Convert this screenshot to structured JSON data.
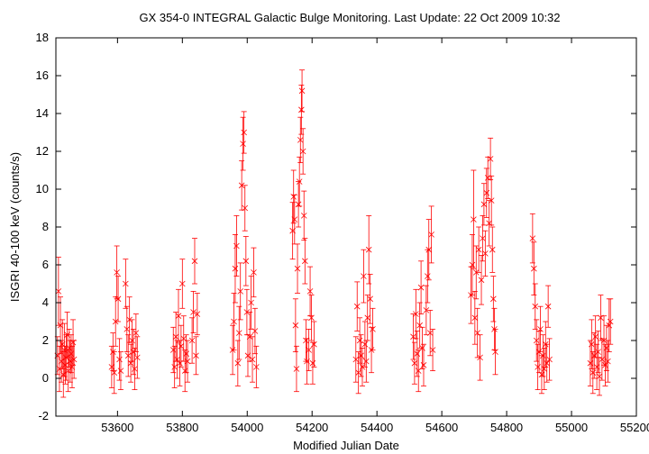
{
  "chart_data": {
    "type": "scatter",
    "title": "GX 354-0   INTEGRAL Galactic Bulge Monitoring.  Last Update: 22 Oct 2009 10:32",
    "xlabel": "Modified Julian Date",
    "ylabel": "ISGRI 40-100 keV (counts/s)",
    "xlim": [
      53410,
      55200
    ],
    "ylim": [
      -2,
      18
    ],
    "xticks": [
      53600,
      53800,
      54000,
      54200,
      54400,
      54600,
      54800,
      55000,
      55200
    ],
    "yticks": [
      -2,
      0,
      2,
      4,
      6,
      8,
      10,
      12,
      14,
      16,
      18
    ],
    "grid": false,
    "legend": "none",
    "marker": "x-with-errorbars",
    "color": "#ff0000",
    "series": [
      {
        "points": [
          {
            "x": 53415,
            "y": 1.2,
            "err": 1.0
          },
          {
            "x": 53418,
            "y": 4.6,
            "err": 1.8
          },
          {
            "x": 53421,
            "y": 0.5,
            "err": 1.2
          },
          {
            "x": 53424,
            "y": 2.8,
            "err": 1.5
          },
          {
            "x": 53427,
            "y": 0.9,
            "err": 1.1
          },
          {
            "x": 53430,
            "y": 1.8,
            "err": 1.3
          },
          {
            "x": 53433,
            "y": 0.2,
            "err": 1.2
          },
          {
            "x": 53436,
            "y": 1.5,
            "err": 1.4
          },
          {
            "x": 53439,
            "y": 0.7,
            "err": 1.0
          },
          {
            "x": 53442,
            "y": 1.1,
            "err": 1.2
          },
          {
            "x": 53445,
            "y": 2.3,
            "err": 1.2
          },
          {
            "x": 53448,
            "y": 0.4,
            "err": 1.1
          },
          {
            "x": 53451,
            "y": 1.6,
            "err": 1.0
          },
          {
            "x": 53454,
            "y": 0.9,
            "err": 1.1
          },
          {
            "x": 53457,
            "y": 1.3,
            "err": 1.0
          },
          {
            "x": 53460,
            "y": 0.6,
            "err": 1.1
          },
          {
            "x": 53463,
            "y": 1.9,
            "err": 1.2
          },
          {
            "x": 53466,
            "y": 1.0,
            "err": 1.0
          },
          {
            "x": 53582,
            "y": 0.6,
            "err": 1.1
          },
          {
            "x": 53586,
            "y": 1.4,
            "err": 1.0
          },
          {
            "x": 53590,
            "y": 0.3,
            "err": 1.1
          },
          {
            "x": 53594,
            "y": 3.0,
            "err": 1.3
          },
          {
            "x": 53598,
            "y": 5.6,
            "err": 1.4
          },
          {
            "x": 53602,
            "y": 4.2,
            "err": 1.2
          },
          {
            "x": 53606,
            "y": 1.0,
            "err": 1.1
          },
          {
            "x": 53610,
            "y": 0.4,
            "err": 1.0
          },
          {
            "x": 53625,
            "y": 5.0,
            "err": 1.3
          },
          {
            "x": 53629,
            "y": 2.6,
            "err": 1.2
          },
          {
            "x": 53633,
            "y": 1.2,
            "err": 1.1
          },
          {
            "x": 53637,
            "y": 3.1,
            "err": 1.2
          },
          {
            "x": 53641,
            "y": 0.8,
            "err": 1.0
          },
          {
            "x": 53645,
            "y": 2.0,
            "err": 1.1
          },
          {
            "x": 53649,
            "y": 1.4,
            "err": 1.2
          },
          {
            "x": 53653,
            "y": 0.5,
            "err": 1.1
          },
          {
            "x": 53657,
            "y": 2.4,
            "err": 1.0
          },
          {
            "x": 53661,
            "y": 1.1,
            "err": 1.1
          },
          {
            "x": 53772,
            "y": 1.5,
            "err": 1.2
          },
          {
            "x": 53776,
            "y": 0.6,
            "err": 1.1
          },
          {
            "x": 53780,
            "y": 2.2,
            "err": 1.3
          },
          {
            "x": 53784,
            "y": 1.0,
            "err": 1.0
          },
          {
            "x": 53788,
            "y": 3.3,
            "err": 1.4
          },
          {
            "x": 53792,
            "y": 0.8,
            "err": 1.2
          },
          {
            "x": 53796,
            "y": 1.7,
            "err": 1.1
          },
          {
            "x": 53800,
            "y": 5.0,
            "err": 1.3
          },
          {
            "x": 53804,
            "y": 2.1,
            "err": 1.2
          },
          {
            "x": 53808,
            "y": 0.4,
            "err": 1.1
          },
          {
            "x": 53812,
            "y": 1.3,
            "err": 1.0
          },
          {
            "x": 53816,
            "y": 0.9,
            "err": 1.1
          },
          {
            "x": 53830,
            "y": 2.0,
            "err": 1.2
          },
          {
            "x": 53834,
            "y": 3.5,
            "err": 1.1
          },
          {
            "x": 53838,
            "y": 6.2,
            "err": 1.2
          },
          {
            "x": 53842,
            "y": 1.2,
            "err": 1.0
          },
          {
            "x": 53846,
            "y": 3.4,
            "err": 1.1
          },
          {
            "x": 53955,
            "y": 1.5,
            "err": 1.3
          },
          {
            "x": 53959,
            "y": 3.0,
            "err": 1.5
          },
          {
            "x": 53963,
            "y": 5.8,
            "err": 1.8
          },
          {
            "x": 53967,
            "y": 7.0,
            "err": 1.6
          },
          {
            "x": 53971,
            "y": 0.8,
            "err": 1.2
          },
          {
            "x": 53975,
            "y": 2.4,
            "err": 1.4
          },
          {
            "x": 53979,
            "y": 4.6,
            "err": 1.5
          },
          {
            "x": 53983,
            "y": 10.2,
            "err": 1.3
          },
          {
            "x": 53987,
            "y": 12.4,
            "err": 1.4
          },
          {
            "x": 53990,
            "y": 13.0,
            "err": 1.1
          },
          {
            "x": 53993,
            "y": 9.0,
            "err": 1.2
          },
          {
            "x": 53996,
            "y": 6.2,
            "err": 1.3
          },
          {
            "x": 53999,
            "y": 3.5,
            "err": 1.2
          },
          {
            "x": 54002,
            "y": 1.2,
            "err": 1.1
          },
          {
            "x": 54008,
            "y": 2.2,
            "err": 1.3
          },
          {
            "x": 54012,
            "y": 4.0,
            "err": 1.4
          },
          {
            "x": 54016,
            "y": 1.0,
            "err": 1.2
          },
          {
            "x": 54020,
            "y": 5.6,
            "err": 1.3
          },
          {
            "x": 54024,
            "y": 2.5,
            "err": 1.2
          },
          {
            "x": 54028,
            "y": 0.6,
            "err": 1.1
          },
          {
            "x": 54140,
            "y": 7.8,
            "err": 1.5
          },
          {
            "x": 54143,
            "y": 9.6,
            "err": 1.4
          },
          {
            "x": 54146,
            "y": 8.4,
            "err": 1.3
          },
          {
            "x": 54149,
            "y": 2.8,
            "err": 1.4
          },
          {
            "x": 54152,
            "y": 0.5,
            "err": 1.2
          },
          {
            "x": 54155,
            "y": 5.8,
            "err": 1.3
          },
          {
            "x": 54158,
            "y": 9.2,
            "err": 1.2
          },
          {
            "x": 54161,
            "y": 10.4,
            "err": 1.3
          },
          {
            "x": 54164,
            "y": 12.6,
            "err": 1.2
          },
          {
            "x": 54167,
            "y": 14.2,
            "err": 1.3
          },
          {
            "x": 54169,
            "y": 15.2,
            "err": 1.1
          },
          {
            "x": 54172,
            "y": 12.0,
            "err": 1.2
          },
          {
            "x": 54175,
            "y": 8.6,
            "err": 1.3
          },
          {
            "x": 54178,
            "y": 6.2,
            "err": 1.2
          },
          {
            "x": 54181,
            "y": 2.0,
            "err": 1.1
          },
          {
            "x": 54184,
            "y": 0.9,
            "err": 1.2
          },
          {
            "x": 54190,
            "y": 1.5,
            "err": 1.1
          },
          {
            "x": 54194,
            "y": 4.6,
            "err": 1.3
          },
          {
            "x": 54198,
            "y": 3.2,
            "err": 1.2
          },
          {
            "x": 54202,
            "y": 0.8,
            "err": 1.1
          },
          {
            "x": 54206,
            "y": 1.8,
            "err": 1.2
          },
          {
            "x": 54335,
            "y": 1.0,
            "err": 1.2
          },
          {
            "x": 54339,
            "y": 3.8,
            "err": 1.3
          },
          {
            "x": 54343,
            "y": 0.3,
            "err": 1.1
          },
          {
            "x": 54347,
            "y": 2.0,
            "err": 1.2
          },
          {
            "x": 54351,
            "y": 1.2,
            "err": 1.1
          },
          {
            "x": 54355,
            "y": 0.6,
            "err": 1.0
          },
          {
            "x": 54359,
            "y": 5.4,
            "err": 1.4
          },
          {
            "x": 54363,
            "y": 1.8,
            "err": 1.2
          },
          {
            "x": 54367,
            "y": 0.9,
            "err": 1.1
          },
          {
            "x": 54371,
            "y": 3.2,
            "err": 1.2
          },
          {
            "x": 54375,
            "y": 6.8,
            "err": 1.8
          },
          {
            "x": 54379,
            "y": 4.2,
            "err": 1.3
          },
          {
            "x": 54383,
            "y": 1.5,
            "err": 1.2
          },
          {
            "x": 54387,
            "y": 2.6,
            "err": 1.1
          },
          {
            "x": 54512,
            "y": 2.2,
            "err": 1.2
          },
          {
            "x": 54516,
            "y": 0.8,
            "err": 1.1
          },
          {
            "x": 54520,
            "y": 3.4,
            "err": 1.3
          },
          {
            "x": 54524,
            "y": 1.3,
            "err": 1.2
          },
          {
            "x": 54528,
            "y": 0.4,
            "err": 1.1
          },
          {
            "x": 54532,
            "y": 2.8,
            "err": 1.2
          },
          {
            "x": 54536,
            "y": 4.8,
            "err": 1.4
          },
          {
            "x": 54540,
            "y": 1.6,
            "err": 1.1
          },
          {
            "x": 54544,
            "y": 0.7,
            "err": 1.1
          },
          {
            "x": 54552,
            "y": 3.6,
            "err": 1.3
          },
          {
            "x": 54556,
            "y": 5.4,
            "err": 1.4
          },
          {
            "x": 54560,
            "y": 6.8,
            "err": 1.6
          },
          {
            "x": 54564,
            "y": 2.4,
            "err": 1.2
          },
          {
            "x": 54568,
            "y": 7.6,
            "err": 1.5
          },
          {
            "x": 54572,
            "y": 1.5,
            "err": 1.1
          },
          {
            "x": 54690,
            "y": 4.4,
            "err": 1.5
          },
          {
            "x": 54694,
            "y": 6.0,
            "err": 1.6
          },
          {
            "x": 54698,
            "y": 8.4,
            "err": 2.6
          },
          {
            "x": 54702,
            "y": 3.2,
            "err": 1.4
          },
          {
            "x": 54706,
            "y": 5.6,
            "err": 1.4
          },
          {
            "x": 54710,
            "y": 2.4,
            "err": 1.3
          },
          {
            "x": 54714,
            "y": 6.8,
            "err": 1.2
          },
          {
            "x": 54718,
            "y": 1.1,
            "err": 1.2
          },
          {
            "x": 54722,
            "y": 5.2,
            "err": 1.3
          },
          {
            "x": 54726,
            "y": 7.4,
            "err": 1.2
          },
          {
            "x": 54730,
            "y": 9.2,
            "err": 1.1
          },
          {
            "x": 54734,
            "y": 6.6,
            "err": 1.2
          },
          {
            "x": 54738,
            "y": 9.8,
            "err": 1.3
          },
          {
            "x": 54742,
            "y": 10.6,
            "err": 1.1
          },
          {
            "x": 54746,
            "y": 8.2,
            "err": 1.2
          },
          {
            "x": 54750,
            "y": 11.6,
            "err": 1.1
          },
          {
            "x": 54753,
            "y": 9.4,
            "err": 1.3
          },
          {
            "x": 54756,
            "y": 6.8,
            "err": 1.2
          },
          {
            "x": 54759,
            "y": 4.2,
            "err": 1.2
          },
          {
            "x": 54762,
            "y": 2.6,
            "err": 1.1
          },
          {
            "x": 54765,
            "y": 1.4,
            "err": 1.2
          },
          {
            "x": 54880,
            "y": 7.4,
            "err": 1.3
          },
          {
            "x": 54884,
            "y": 5.8,
            "err": 1.4
          },
          {
            "x": 54888,
            "y": 3.8,
            "err": 1.2
          },
          {
            "x": 54892,
            "y": 2.0,
            "err": 1.1
          },
          {
            "x": 54896,
            "y": 0.6,
            "err": 1.2
          },
          {
            "x": 54900,
            "y": 1.4,
            "err": 1.1
          },
          {
            "x": 54904,
            "y": 2.6,
            "err": 1.2
          },
          {
            "x": 54908,
            "y": 0.2,
            "err": 1.0
          },
          {
            "x": 54912,
            "y": 1.2,
            "err": 1.1
          },
          {
            "x": 54916,
            "y": 0.5,
            "err": 1.1
          },
          {
            "x": 54920,
            "y": 1.8,
            "err": 1.2
          },
          {
            "x": 54924,
            "y": 0.8,
            "err": 1.0
          },
          {
            "x": 54928,
            "y": 3.8,
            "err": 1.1
          },
          {
            "x": 54932,
            "y": 1.0,
            "err": 1.1
          },
          {
            "x": 55058,
            "y": 0.8,
            "err": 1.2
          },
          {
            "x": 55062,
            "y": 1.8,
            "err": 1.3
          },
          {
            "x": 55066,
            "y": 0.3,
            "err": 1.1
          },
          {
            "x": 55070,
            "y": 1.2,
            "err": 1.2
          },
          {
            "x": 55074,
            "y": 2.2,
            "err": 1.1
          },
          {
            "x": 55078,
            "y": 0.6,
            "err": 1.2
          },
          {
            "x": 55082,
            "y": 1.4,
            "err": 1.1
          },
          {
            "x": 55086,
            "y": 0.1,
            "err": 1.0
          },
          {
            "x": 55090,
            "y": 3.2,
            "err": 1.2
          },
          {
            "x": 55094,
            "y": 1.0,
            "err": 1.1
          },
          {
            "x": 55100,
            "y": 2.0,
            "err": 1.3
          },
          {
            "x": 55104,
            "y": 0.7,
            "err": 1.1
          },
          {
            "x": 55108,
            "y": 1.6,
            "err": 1.2
          },
          {
            "x": 55112,
            "y": 0.9,
            "err": 1.1
          },
          {
            "x": 55116,
            "y": 2.8,
            "err": 1.4
          },
          {
            "x": 55120,
            "y": 3.0,
            "err": 1.2
          }
        ]
      }
    ]
  }
}
